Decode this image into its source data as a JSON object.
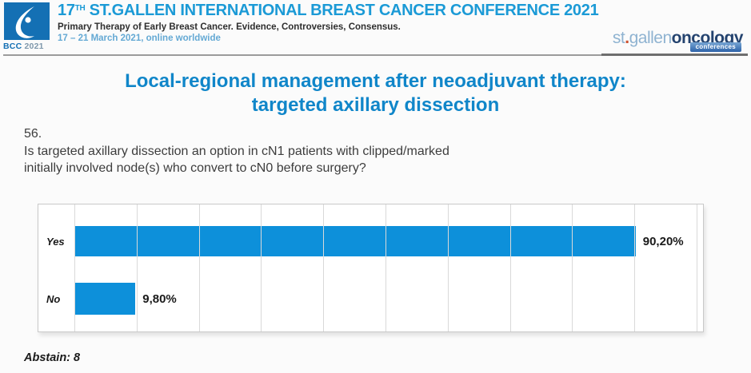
{
  "header": {
    "logo": {
      "bcc": "BCC",
      "year": "2021"
    },
    "title_num": "17",
    "title_sup": "TH",
    "title_rest": " ST.GALLEN INTERNATIONAL BREAST CANCER CONFERENCE 2021",
    "subtitle": "Primary Therapy of Early Breast Cancer. Evidence, Controversies, Consensus.",
    "dates": "17 – 21 March 2021, online worldwide",
    "partner": {
      "part1": "st",
      "dot": ".",
      "part2": "gallen",
      "part3": "oncology",
      "badge": "conferences"
    }
  },
  "slide": {
    "title_line1": "Local-regional management after neoadjuvant therapy:",
    "title_line2": "targeted axillary dissection",
    "question_number": "56.",
    "question_line1": "Is targeted axillary dissection an option in cN1 patients with clipped/marked",
    "question_line2": "initially involved node(s) who convert to cN0 before surgery?",
    "abstain_note": "Abstain: 8"
  },
  "chart_data": {
    "type": "bar",
    "orientation": "horizontal",
    "categories": [
      "Yes",
      "No"
    ],
    "values": [
      90.2,
      9.8
    ],
    "value_labels": [
      "90,20%",
      "9,80%"
    ],
    "title": "",
    "xlabel": "",
    "ylabel": "",
    "xlim": [
      0,
      100
    ],
    "gridline_step": 10,
    "grid": "vertical-gridlines",
    "legend": "none",
    "bar_color": "#0d90da",
    "abstain_count": 8
  },
  "colors": {
    "bar_blue": "#0d90da",
    "slide_title_blue": "#1086c9",
    "conference_title_blue": "#1b9ad6",
    "dates_blue": "#64a9d4",
    "logo_square_blue": "#1470b4",
    "partner_light_blue": "#8fb3d1",
    "partner_navy": "#24436f",
    "partner_badge_blue": "#2d62a8",
    "partner_dot_orange": "#cc4f2e",
    "divider_gray": "#9b9b9b"
  }
}
